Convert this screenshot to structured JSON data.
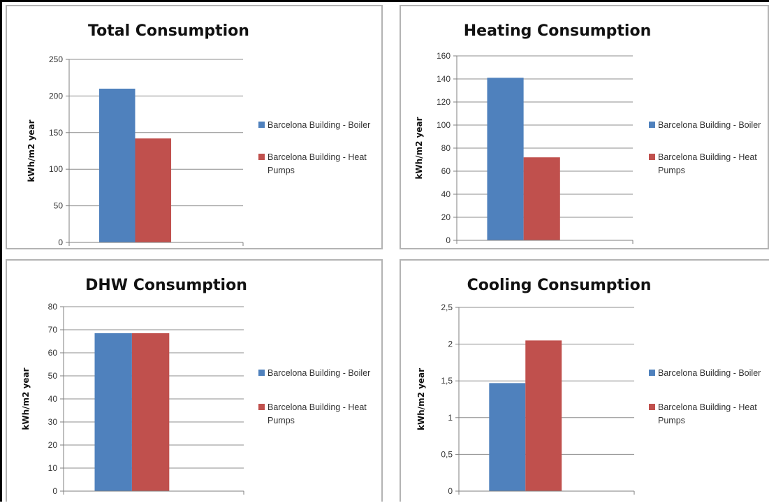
{
  "chart_data": [
    {
      "type": "bar",
      "title": "Total Consumption",
      "ylabel": "kWh/m2 year",
      "ylim": [
        0,
        250
      ],
      "yticks": [
        "0",
        "50",
        "100",
        "150",
        "200",
        "250"
      ],
      "grid": true,
      "legend_position": "right",
      "series": [
        {
          "name": "Barcelona Building - Boiler",
          "values": [
            210
          ]
        },
        {
          "name": "Barcelona Building - Heat Pumps",
          "values": [
            142
          ]
        }
      ]
    },
    {
      "type": "bar",
      "title": "Heating Consumption",
      "ylabel": "kWh/m2 year",
      "ylim": [
        0,
        160
      ],
      "yticks": [
        "0",
        "20",
        "40",
        "60",
        "80",
        "100",
        "120",
        "140",
        "160"
      ],
      "grid": true,
      "legend_position": "right",
      "series": [
        {
          "name": "Barcelona Building - Boiler",
          "values": [
            141
          ]
        },
        {
          "name": "Barcelona Building - Heat Pumps",
          "values": [
            72
          ]
        }
      ]
    },
    {
      "type": "bar",
      "title": "DHW Consumption",
      "ylabel": "kWh/m2 year",
      "ylim": [
        0,
        80
      ],
      "yticks": [
        "0",
        "10",
        "20",
        "30",
        "40",
        "50",
        "60",
        "70",
        "80"
      ],
      "grid": true,
      "legend_position": "right",
      "series": [
        {
          "name": "Barcelona Building - Boiler",
          "values": [
            68.5
          ]
        },
        {
          "name": "Barcelona Building - Heat Pumps",
          "values": [
            68.5
          ]
        }
      ]
    },
    {
      "type": "bar",
      "title": "Cooling Consumption",
      "ylabel": "kWh/m2 year",
      "ylim": [
        0,
        2.5
      ],
      "yticks": [
        "0",
        "0,5",
        "1",
        "1,5",
        "2",
        "2,5"
      ],
      "grid": true,
      "legend_position": "right",
      "series": [
        {
          "name": "Barcelona Building - Boiler",
          "values": [
            1.47
          ]
        },
        {
          "name": "Barcelona Building - Heat Pumps",
          "values": [
            2.05
          ]
        }
      ]
    }
  ],
  "colors": {
    "boiler": "#4f81bd",
    "heat_pumps": "#c0504d",
    "grid": "#8c8c8c",
    "axis": "#7f7f7f"
  },
  "legend_lines": [
    [
      "Barcelona Building - Boiler"
    ],
    [
      "Barcelona Building - Heat",
      "Pumps"
    ]
  ]
}
